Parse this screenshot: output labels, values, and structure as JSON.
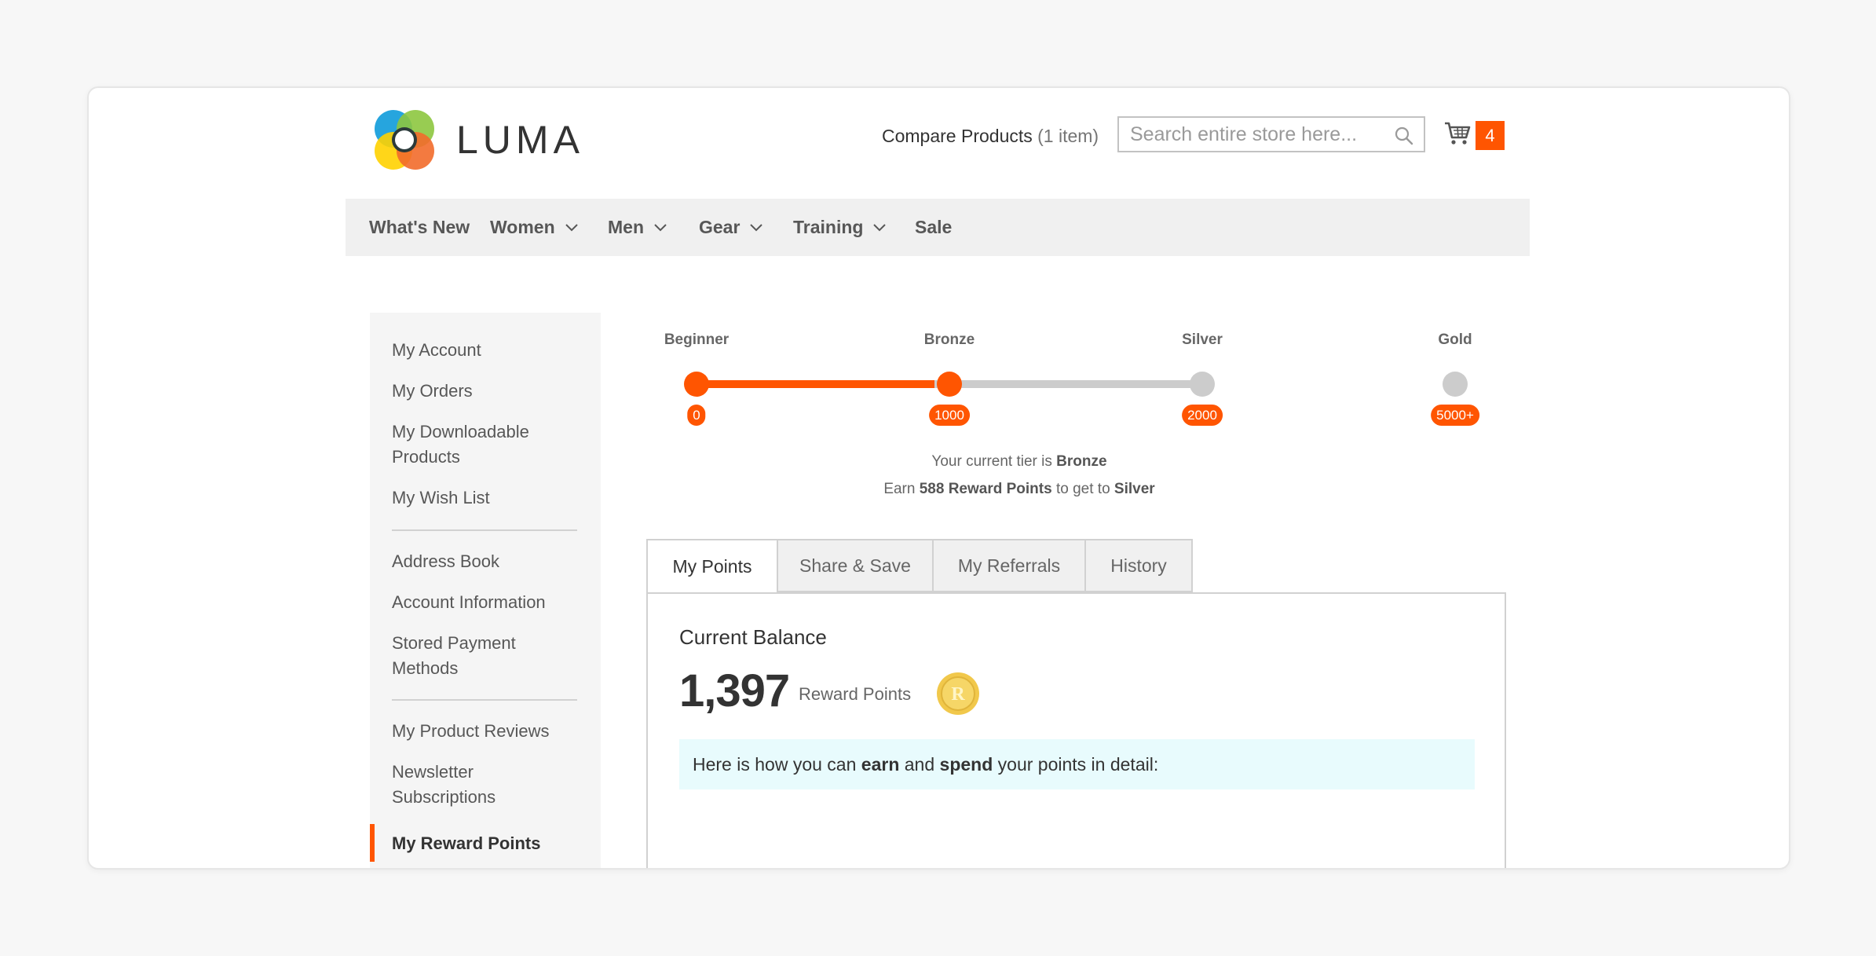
{
  "brand": {
    "name": "LUMA"
  },
  "header": {
    "compare_label": "Compare Products",
    "compare_count": "(1 item)",
    "search_placeholder": "Search entire store here...",
    "cart_count": "4"
  },
  "nav": {
    "items": [
      {
        "label": "What's New",
        "dropdown": false
      },
      {
        "label": "Women",
        "dropdown": true
      },
      {
        "label": "Men",
        "dropdown": true
      },
      {
        "label": "Gear",
        "dropdown": true
      },
      {
        "label": "Training",
        "dropdown": true
      },
      {
        "label": "Sale",
        "dropdown": false
      }
    ]
  },
  "sidebar": {
    "items": [
      "My Account",
      "My Orders",
      "My Downloadable Products",
      "My Wish List",
      "Address Book",
      "Account Information",
      "Stored Payment Methods",
      "My Product Reviews",
      "Newsletter Subscriptions",
      "My Reward Points"
    ],
    "active": "My Reward Points"
  },
  "tiers": {
    "levels": [
      {
        "name": "Beginner",
        "threshold": "0"
      },
      {
        "name": "Bronze",
        "threshold": "1000"
      },
      {
        "name": "Silver",
        "threshold": "2000"
      },
      {
        "name": "Gold",
        "threshold": "5000+"
      }
    ],
    "progress_fraction": 0.47,
    "current_prefix": "Your current tier is",
    "current_tier": "Bronze",
    "earn_prefix": "Earn",
    "earn_points": "588 Reward Points",
    "earn_middle": "to get to",
    "next_tier": "Silver"
  },
  "tabs": [
    "My Points",
    "Share & Save",
    "My Referrals",
    "History"
  ],
  "active_tab": "My Points",
  "balance": {
    "title": "Current Balance",
    "value": "1,397",
    "unit": "Reward Points",
    "coin_letter": "R"
  },
  "info": {
    "t1": "Here is how you can",
    "b1": "earn",
    "t2": "and",
    "b2": "spend",
    "t3": "your points in detail:"
  },
  "colors": {
    "accent": "#ff5501",
    "track": "#cccccc",
    "info_bg": "#e8fbfd"
  }
}
